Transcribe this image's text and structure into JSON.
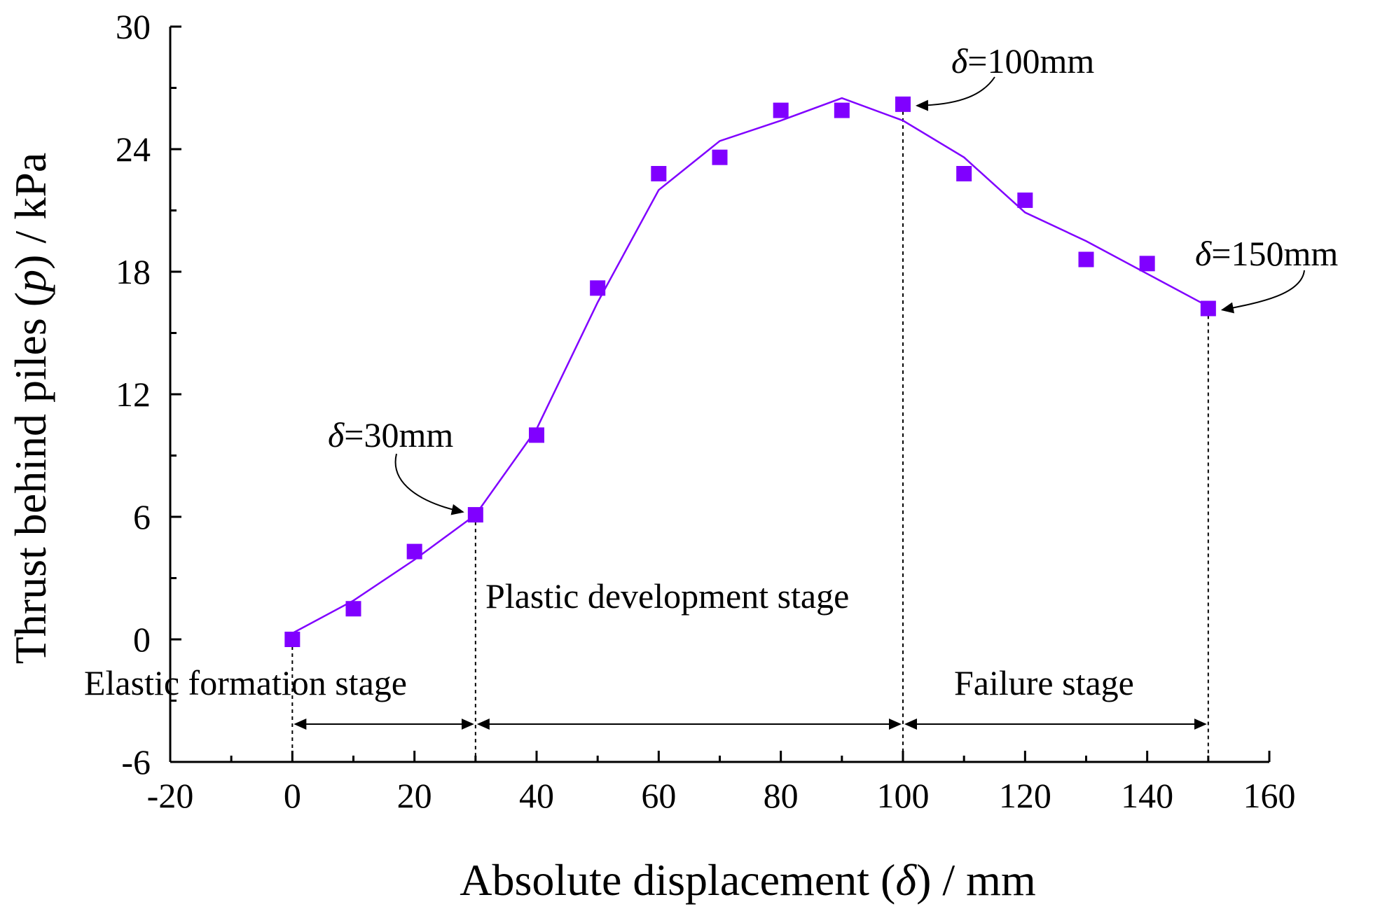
{
  "chart_data": {
    "type": "scatter",
    "xlabel": {
      "prefix": "Absolute displacement (",
      "symbol": "δ",
      "suffix": ") / mm"
    },
    "ylabel": {
      "prefix": "Thrust behind piles (",
      "symbol": "p",
      "suffix": ") / kPa"
    },
    "xlim": [
      -20,
      160
    ],
    "ylim": [
      -6,
      30
    ],
    "xticks": [
      -20,
      0,
      20,
      40,
      60,
      80,
      100,
      120,
      140,
      160
    ],
    "yticks": [
      -6,
      0,
      6,
      12,
      18,
      24,
      30
    ],
    "grid": false,
    "colors": {
      "marker": "#8000ff",
      "line": "#8000ff",
      "axis": "#000000"
    },
    "series": [
      {
        "kind": "markers",
        "marker": "square",
        "x": [
          0,
          10,
          20,
          30,
          40,
          50,
          60,
          70,
          80,
          90,
          100,
          110,
          120,
          130,
          140,
          150
        ],
        "y": [
          0.0,
          1.5,
          4.3,
          6.1,
          10.0,
          17.2,
          22.8,
          23.6,
          25.9,
          25.9,
          26.2,
          22.8,
          21.5,
          18.6,
          18.4,
          16.2
        ]
      },
      {
        "kind": "line",
        "x": [
          0,
          10,
          20,
          30,
          40,
          50,
          60,
          70,
          80,
          90,
          100,
          110,
          120,
          130,
          140,
          150
        ],
        "y": [
          0.3,
          1.9,
          3.9,
          6.1,
          10.3,
          16.5,
          22.0,
          24.4,
          25.4,
          26.5,
          25.4,
          23.6,
          20.9,
          19.5,
          17.9,
          16.3
        ]
      }
    ],
    "stage_boundaries": [
      0,
      30,
      100,
      150
    ],
    "stages": [
      {
        "label": "Elastic formation stage",
        "from": 0,
        "to": 30
      },
      {
        "label": "Plastic development stage",
        "from": 30,
        "to": 100
      },
      {
        "label": "Failure stage",
        "from": 100,
        "to": 150
      }
    ],
    "callouts": [
      {
        "symbol": "δ",
        "text": "=30mm",
        "x": 30,
        "y": 6.1
      },
      {
        "symbol": "δ",
        "text": "=100mm",
        "x": 100,
        "y": 26.2
      },
      {
        "symbol": "δ",
        "text": "=150mm",
        "x": 150,
        "y": 16.2
      }
    ]
  }
}
